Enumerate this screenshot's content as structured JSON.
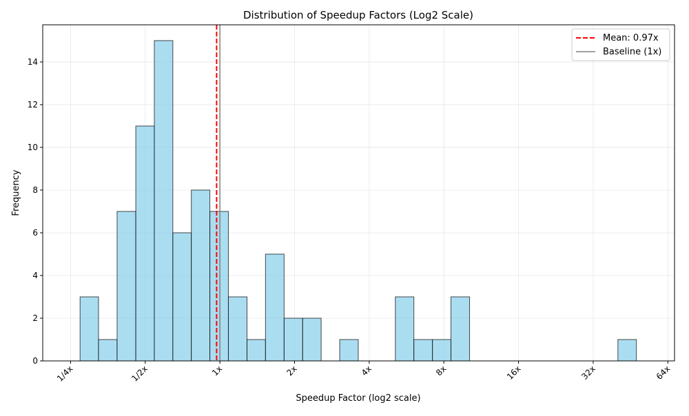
{
  "chart_data": {
    "type": "bar",
    "subtype": "histogram",
    "title": "Distribution of Speedup Factors (Log2 Scale)",
    "xlabel": "Speedup Factor (log2 scale)",
    "ylabel": "Frequency",
    "x_scale": "log2",
    "xlim": [
      0.193,
      68.1
    ],
    "ylim": [
      0,
      15.74
    ],
    "grid": true,
    "x_ticks": [
      0.25,
      0.5,
      1,
      2,
      4,
      8,
      16,
      32,
      64
    ],
    "x_tick_labels": [
      "1/4x",
      "1/2x",
      "1x",
      "2x",
      "4x",
      "8x",
      "16x",
      "32x",
      "64x"
    ],
    "y_ticks": [
      0,
      2,
      4,
      6,
      8,
      10,
      12,
      14
    ],
    "y_tick_labels": [
      "0",
      "2",
      "4",
      "6",
      "8",
      "10",
      "12",
      "14"
    ],
    "bin_edges": [
      0.273,
      0.324,
      0.385,
      0.458,
      0.544,
      0.646,
      0.767,
      0.911,
      1.082,
      1.286,
      1.527,
      1.815,
      2.156,
      2.56,
      3.042,
      3.613,
      4.293,
      5.098,
      6.055,
      7.195,
      8.544,
      10.155,
      12.059,
      14.32,
      17.02,
      20.21,
      24.02,
      28.52,
      33.87,
      40.25,
      47.8
    ],
    "counts": [
      3,
      1,
      7,
      11,
      15,
      6,
      8,
      7,
      3,
      1,
      5,
      2,
      2,
      0,
      1,
      0,
      0,
      3,
      1,
      1,
      3,
      0,
      0,
      0,
      0,
      0,
      0,
      0,
      0,
      1
    ],
    "bar_color": "#87ceeb",
    "bar_alpha": 0.7,
    "bar_edge_color": "#000000",
    "reference_lines": [
      {
        "name": "Mean: 0.97x",
        "x": 0.97,
        "color": "#ff0000",
        "style": "dashed"
      },
      {
        "name": "Baseline (1x)",
        "x": 1,
        "color": "#808080",
        "style": "solid"
      }
    ],
    "legend": {
      "position": "top-right",
      "entries": [
        "Mean: 0.97x",
        "Baseline (1x)"
      ]
    }
  }
}
